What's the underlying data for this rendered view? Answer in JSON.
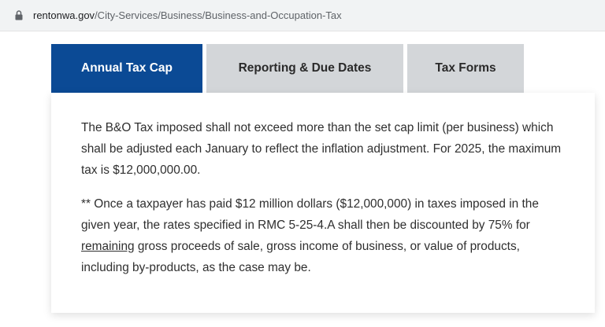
{
  "browser": {
    "url_host": "rentonwa.gov",
    "url_path": "/City-Services/Business/Business-and-Occupation-Tax"
  },
  "tabs": [
    {
      "label": "Annual Tax Cap",
      "active": true
    },
    {
      "label": "Reporting & Due Dates",
      "active": false
    },
    {
      "label": "Tax Forms",
      "active": false
    }
  ],
  "content": {
    "paragraph1": "The B&O Tax imposed shall not exceed more than the set cap limit (per business) which shall be adjusted each January to reflect the inflation adjustment. For 2025, the maximum tax is $12,000,000.00.",
    "paragraph2_part1": "** Once a taxpayer has paid $12 million dollars ($12,000,000) in taxes imposed in the given year, the rates specified in RMC 5-25-4.A shall then be discounted by 75% for ",
    "paragraph2_underlined": "remaining",
    "paragraph2_part2": " gross proceeds of sale, gross income of business, or value of products, including by-products, as the case may be."
  },
  "colors": {
    "active_tab": "#0b4a95",
    "inactive_tab": "#d3d6d9"
  },
  "icons": {
    "address_bar": "lock-icon"
  }
}
